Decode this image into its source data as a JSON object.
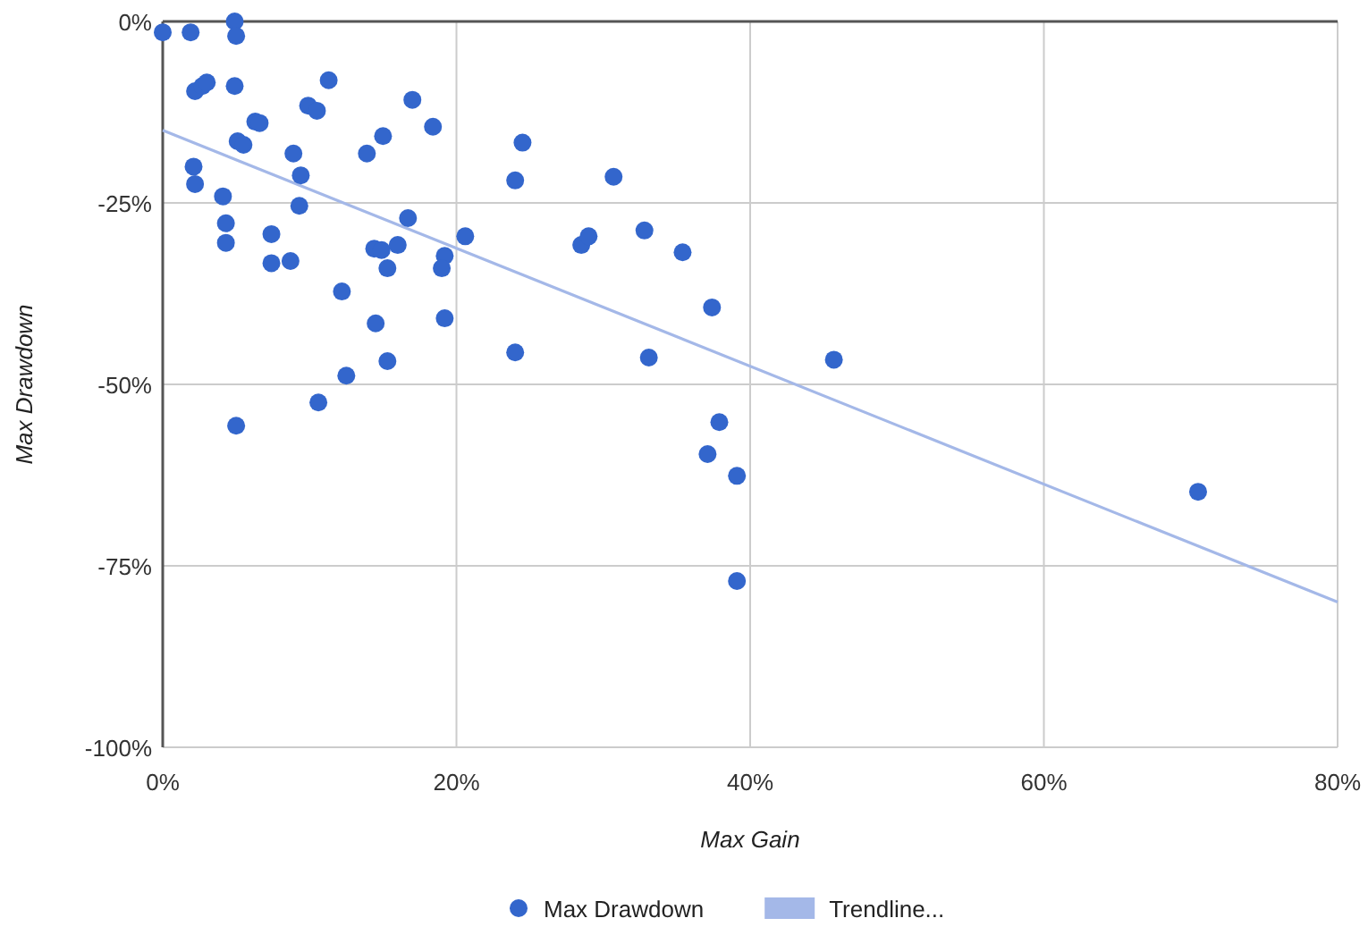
{
  "chart_data": {
    "type": "scatter",
    "xlabel": "Max Gain",
    "ylabel": "Max Drawdown",
    "xlim": [
      0,
      80
    ],
    "ylim": [
      -100,
      0
    ],
    "xticks": [
      {
        "value": 0,
        "label": "0%"
      },
      {
        "value": 20,
        "label": "20%"
      },
      {
        "value": 40,
        "label": "40%"
      },
      {
        "value": 60,
        "label": "60%"
      },
      {
        "value": 80,
        "label": "80%"
      }
    ],
    "yticks": [
      {
        "value": -100,
        "label": "-100%"
      },
      {
        "value": -75,
        "label": "-75%"
      },
      {
        "value": -50,
        "label": "-50%"
      },
      {
        "value": -25,
        "label": "-25%"
      },
      {
        "value": 0,
        "label": "0%"
      }
    ],
    "grid": true,
    "legend": "bottom",
    "series": [
      {
        "name": "Max Drawdown",
        "marker": "circle",
        "color": "#3366cc",
        "x": [
          0,
          1.9,
          4.9,
          5.0,
          2.2,
          2.7,
          3.0,
          4.9,
          11.3,
          6.3,
          6.6,
          9.9,
          10.5,
          5.1,
          5.5,
          2.1,
          2.2,
          8.9,
          9.4,
          4.1,
          4.3,
          4.3,
          7.4,
          7.4,
          8.7,
          9.3,
          12.2,
          12.5,
          5.0,
          10.6,
          17.0,
          18.4,
          15.0,
          13.9,
          24.5,
          24.0,
          30.7,
          16.7,
          14.4,
          14.9,
          16.0,
          15.3,
          19.2,
          19.0,
          20.6,
          28.5,
          29.0,
          32.8,
          35.4,
          14.5,
          19.2,
          24.0,
          15.3,
          33.1,
          37.4,
          45.7,
          37.9,
          37.1,
          39.1,
          39.1,
          70.5
        ],
        "values": [
          -1.5,
          -1.5,
          0,
          -2,
          -9.6,
          -8.9,
          -8.4,
          -8.9,
          -8.1,
          -13.8,
          -14,
          -11.6,
          -12.3,
          -16.5,
          -17,
          -20,
          -22.4,
          -18.2,
          -21.2,
          -24.1,
          -27.8,
          -30.5,
          -29.3,
          -33.3,
          -33,
          -25.4,
          -37.2,
          -48.8,
          -55.7,
          -52.5,
          -10.8,
          -14.5,
          -15.8,
          -18.2,
          -16.7,
          -21.9,
          -21.4,
          -27.1,
          -31.3,
          -31.5,
          -30.8,
          -34,
          -32.3,
          -34,
          -29.6,
          -30.8,
          -29.6,
          -28.8,
          -31.8,
          -41.6,
          -40.9,
          -45.6,
          -46.8,
          -46.3,
          -39.4,
          -46.6,
          -55.2,
          -59.6,
          -62.6,
          -77.1,
          -64.8
        ]
      },
      {
        "name": "Trendline...",
        "type": "line",
        "color": "#a4b8e8",
        "x": [
          0,
          80
        ],
        "values": [
          -15,
          -80
        ]
      }
    ]
  }
}
